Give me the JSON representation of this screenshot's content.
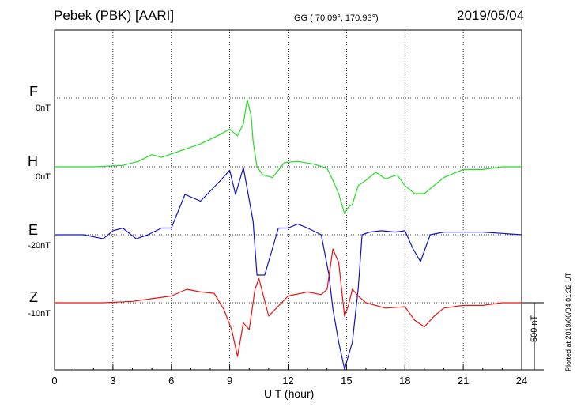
{
  "header": {
    "station": "Pebek (PBK)  [AARI]",
    "coords": "GG ( 70.09°, 170.93°)",
    "date": "2019/05/04"
  },
  "footer": {
    "plotted": "Plotted at 2019/06/04 01:32 UT",
    "scale": "500 nT"
  },
  "chart_data": {
    "type": "line",
    "xlabel": "U T (hour)",
    "xlim": [
      0,
      24
    ],
    "xticks": [
      "0",
      "3",
      "6",
      "9",
      "12",
      "15",
      "18",
      "21",
      "24"
    ],
    "grid": true,
    "units": "nT",
    "scale_bar_nT": 500,
    "series": [
      {
        "name": "F",
        "baseline_label": "0nT",
        "color": "#f0a000",
        "x": [],
        "y": []
      },
      {
        "name": "H",
        "baseline_label": "0nT",
        "color": "#22dd22",
        "x": [
          0,
          2,
          3.5,
          4.3,
          5.0,
          5.5,
          6.5,
          7.5,
          8.5,
          9.0,
          9.4,
          9.7,
          9.9,
          10.1,
          10.2,
          10.4,
          10.7,
          11.2,
          11.8,
          12.5,
          13.3,
          14.0,
          14.3,
          14.6,
          14.9,
          15.1,
          15.3,
          15.6,
          16.0,
          16.5,
          17.0,
          17.6,
          18.0,
          18.5,
          19.0,
          20.0,
          21.0,
          22.0,
          23.0,
          24.0
        ],
        "y": [
          0,
          0,
          10,
          40,
          90,
          70,
          120,
          170,
          240,
          280,
          230,
          320,
          500,
          380,
          190,
          0,
          -60,
          -80,
          30,
          40,
          20,
          -10,
          -100,
          -200,
          -350,
          -300,
          -280,
          -140,
          -100,
          -40,
          -90,
          -60,
          -140,
          -200,
          -200,
          -80,
          -20,
          -20,
          0,
          0
        ]
      },
      {
        "name": "E",
        "baseline_label": "-20nT",
        "color": "#1111cc",
        "x": [
          0,
          1.5,
          2.5,
          3.0,
          3.5,
          4.2,
          4.8,
          5.5,
          6.0,
          6.7,
          7.5,
          8.5,
          9.0,
          9.3,
          9.7,
          10.2,
          10.4,
          10.8,
          11.5,
          12.0,
          12.5,
          13.0,
          13.7,
          14.1,
          14.3,
          14.6,
          14.9,
          15.1,
          15.3,
          15.6,
          15.8,
          16.2,
          16.8,
          17.5,
          18.0,
          18.4,
          18.8,
          19.3,
          20.0,
          21.0,
          22.0,
          23.0,
          24.0
        ],
        "y": [
          0,
          0,
          -30,
          30,
          50,
          -30,
          0,
          50,
          50,
          300,
          250,
          400,
          480,
          300,
          500,
          100,
          -300,
          -300,
          50,
          50,
          80,
          50,
          0,
          -300,
          -550,
          -800,
          -1000,
          -900,
          -800,
          -400,
          0,
          20,
          30,
          20,
          30,
          -100,
          -200,
          0,
          20,
          20,
          20,
          10,
          0
        ]
      },
      {
        "name": "Z",
        "baseline_label": "-10nT",
        "color": "#ee1111",
        "x": [
          0,
          2.5,
          4.0,
          5.0,
          6.0,
          6.8,
          7.5,
          8.2,
          8.7,
          9.1,
          9.4,
          9.7,
          10.0,
          10.3,
          10.5,
          11.0,
          12.0,
          13.0,
          13.7,
          14.0,
          14.3,
          14.6,
          14.9,
          15.1,
          15.3,
          15.6,
          16.0,
          17.0,
          18.0,
          18.5,
          19.0,
          19.5,
          20.0,
          21.0,
          22.0,
          23.0,
          24.0
        ],
        "y": [
          0,
          0,
          10,
          30,
          50,
          100,
          80,
          70,
          -50,
          -200,
          -400,
          -150,
          -200,
          100,
          180,
          -100,
          50,
          80,
          60,
          100,
          400,
          300,
          -100,
          -20,
          100,
          50,
          0,
          -40,
          -30,
          -130,
          -180,
          -100,
          -40,
          -20,
          -20,
          0,
          0
        ]
      }
    ]
  }
}
